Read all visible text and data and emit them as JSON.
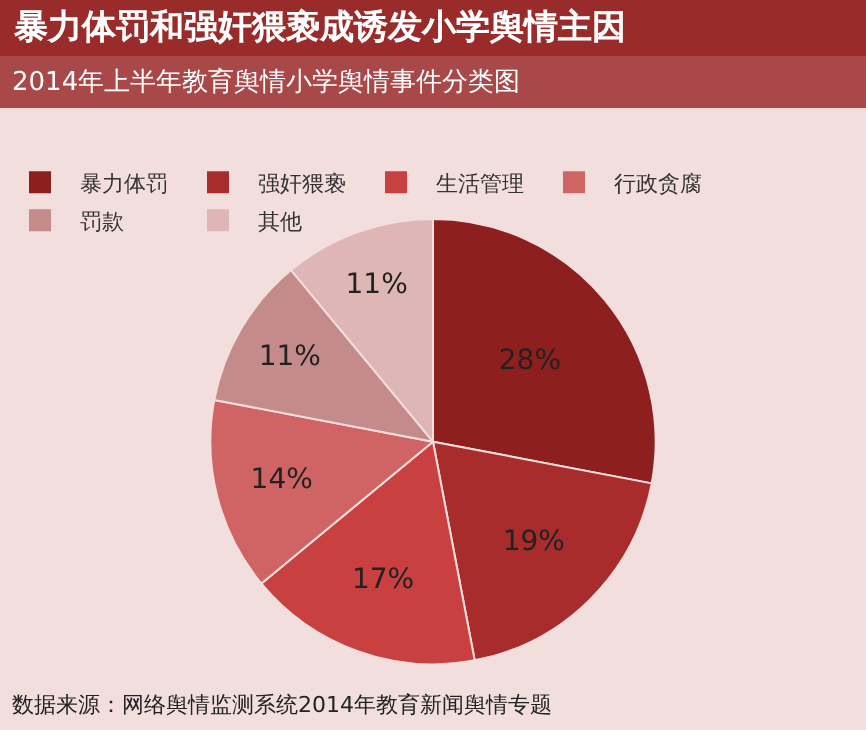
{
  "chart_data": {
    "type": "pie",
    "title": "暴力体罚和强奸猥亵成诱发小学舆情主因",
    "subtitle": "2014年上半年教育舆情小学舆情事件分类图",
    "categories": [
      "暴力体罚",
      "强奸猥亵",
      "生活管理",
      "行政贪腐",
      "罚款",
      "其他"
    ],
    "values": [
      28,
      19,
      17,
      14,
      11,
      11
    ],
    "colors": [
      "#8e1f1f",
      "#a82c2c",
      "#c94040",
      "#d06464",
      "#c58a8a",
      "#deb6b6"
    ],
    "value_labels": [
      "28%",
      "19%",
      "17%",
      "14%",
      "11%",
      "11%"
    ],
    "legend": "top",
    "annotations": [
      "数据来源：网络舆情监测系统2014年教育新闻舆情专题"
    ]
  }
}
